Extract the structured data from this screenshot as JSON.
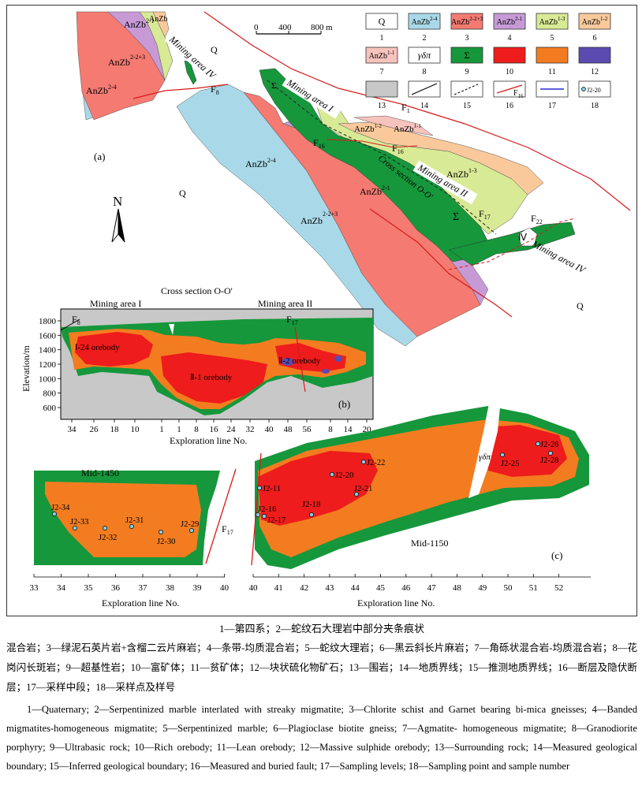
{
  "map": {
    "panel_a_label": "(a)",
    "panel_b_label": "(b)",
    "panel_c_label": "(c)",
    "labels": {
      "q": "Q",
      "f1": "F",
      "f1_sub": "1",
      "f8": "F",
      "f8_sub": "8",
      "f16": "F",
      "f16_sub": "16",
      "f17": "F",
      "f17_sub": "17",
      "f22": "F",
      "f22_sub": "22",
      "mining_area_i": "Mining area I",
      "mining_area_ii": "Mining area II",
      "mining_area_iv": "Mining area IV",
      "cross_section": "Cross section O-O'",
      "anzb": "AnZb",
      "sup_2_2_3": "2-2+3",
      "sup_2_4": "2-4",
      "sup_2_1": "2-1",
      "sup_1_1": "1-1",
      "sup_1_2": "1-2",
      "sup_1_3": "1-3",
      "sigma": "Σ",
      "gamma_delta_pi": "γδπ",
      "iv_roman": "Ⅳ"
    },
    "north": "N",
    "scale": {
      "ticks": [
        "0",
        "400",
        "800"
      ],
      "unit": "m"
    },
    "legend": {
      "items": [
        {
          "num": "1",
          "sym": "Q",
          "sup": "",
          "color": "#ffffff"
        },
        {
          "num": "2",
          "sym": "AnZb",
          "sup": "2-4",
          "color": "#a9d9e8"
        },
        {
          "num": "3",
          "sym": "AnZb",
          "sup": "2-2+3",
          "color": "#f47a72"
        },
        {
          "num": "4",
          "sym": "AnZb",
          "sup": "2-1",
          "color": "#c79ad6"
        },
        {
          "num": "5",
          "sym": "AnZb",
          "sup": "1-3",
          "color": "#d8ea95"
        },
        {
          "num": "6",
          "sym": "AnZb",
          "sup": "1-2",
          "color": "#f9c99c"
        },
        {
          "num": "7",
          "sym": "AnZb",
          "sup": "1-1",
          "color": "#f7c3bd"
        },
        {
          "num": "8",
          "sym": "γδπ",
          "sup": "",
          "color": "#ffffff"
        },
        {
          "num": "9",
          "sym": "Σ",
          "sup": "",
          "color": "#16973b"
        },
        {
          "num": "10",
          "sym": "",
          "sup": "",
          "color": "#ee1c1c"
        },
        {
          "num": "11",
          "sym": "",
          "sup": "",
          "color": "#f47c20"
        },
        {
          "num": "12",
          "sym": "",
          "sup": "",
          "color": "#5b4bb0"
        },
        {
          "num": "13",
          "sym": "",
          "sup": "",
          "color": "#c8c8c8"
        },
        {
          "num": "14",
          "sym": "",
          "sup": "",
          "color": "#ffffff"
        },
        {
          "num": "15",
          "sym": "",
          "sup": "",
          "color": "#ffffff"
        },
        {
          "num": "16",
          "sym": "F",
          "sup": "16",
          "color": "#ffffff"
        },
        {
          "num": "17",
          "sym": "",
          "sup": "",
          "color": "#ffffff"
        },
        {
          "num": "18",
          "sym": "J2-20",
          "sup": "",
          "color": "#ffffff"
        }
      ]
    }
  },
  "section_b": {
    "title": "Cross section O-O'",
    "mining_area_i": "Mining area I",
    "mining_area_ii": "Mining area II",
    "f8": "F",
    "f8_sub": "8",
    "f17": "F",
    "f17_sub": "17",
    "ylabel": "Elevation/m",
    "yticks": [
      "1800",
      "1600",
      "1400",
      "1200",
      "1000",
      "800",
      "600"
    ],
    "xticks": [
      "34",
      "26",
      "18",
      "10",
      "1",
      "1",
      "8",
      "16",
      "24",
      "32",
      "40",
      "48",
      "56",
      "8",
      "14",
      "20"
    ],
    "xlabel": "Exploration line No.",
    "orebody_1_24": "Ⅰ-24 orebody",
    "orebody_2_1": "Ⅱ-1 orebody",
    "orebody_2_2": "Ⅱ-2 orebody"
  },
  "section_c": {
    "left_title": "Mid-1450",
    "right_title": "Mid-1150",
    "f17": "F",
    "f17_sub": "17",
    "gamma_delta_pi": "γδπ",
    "left_xticks": [
      "33",
      "34",
      "35",
      "36",
      "37",
      "38",
      "39",
      "40"
    ],
    "right_xticks": [
      "40",
      "41",
      "42",
      "43",
      "44",
      "45",
      "46",
      "47",
      "48",
      "49",
      "50",
      "51",
      "52"
    ],
    "xlabel": "Exploration line No.",
    "samples_left": [
      "J2-34",
      "J2-33",
      "J2-32",
      "J2-31",
      "J2-30",
      "J2-29"
    ],
    "samples_right": [
      "J2-11",
      "J2-16",
      "J2-17",
      "J2-18",
      "J2-20",
      "J2-21",
      "J2-22",
      "J2-25",
      "J2-26",
      "J2-28"
    ]
  },
  "caption": {
    "cn_title": "1—第四系；2—蛇纹石大理岩中部分夹条痕状",
    "cn_body": "混合岩；3—绿泥石英片岩+含榴二云片麻岩；4—条带-均质混合岩；5—蛇纹大理岩；6—黑云斜长片麻岩；7—角砾状混合岩-均质混合岩；8—花岗闪长斑岩；9—超基性岩；10—富矿体；11—贫矿体；12—块状硫化物矿石；13—围岩；14—地质界线；15—推测地质界线；16—断层及隐伏断层；17—采样中段；18—采样点及样号",
    "en_body": "1—Quaternary; 2—Serpentinized marble interlated with streaky migmatite; 3—Chlorite schist and Garnet bearing bi-mica gneisses; 4—Banded migmatites-homogeneous migmatite; 5—Serpentinized marble; 6—Plagioclase biotite gneiss; 7—Agmatite- homogeneous migmatite; 8—Granodiorite porphyry; 9—Ultrabasic rock; 10—Rich orebody; 11—Lean orebody; 12—Massive sulphide  orebody; 13—Surrounding rock; 14—Measured geological boundary; 15—Inferred geological boundary; 16—Measured and buried fault; 17—Sampling levels; 18—Sampling point and sample number"
  }
}
